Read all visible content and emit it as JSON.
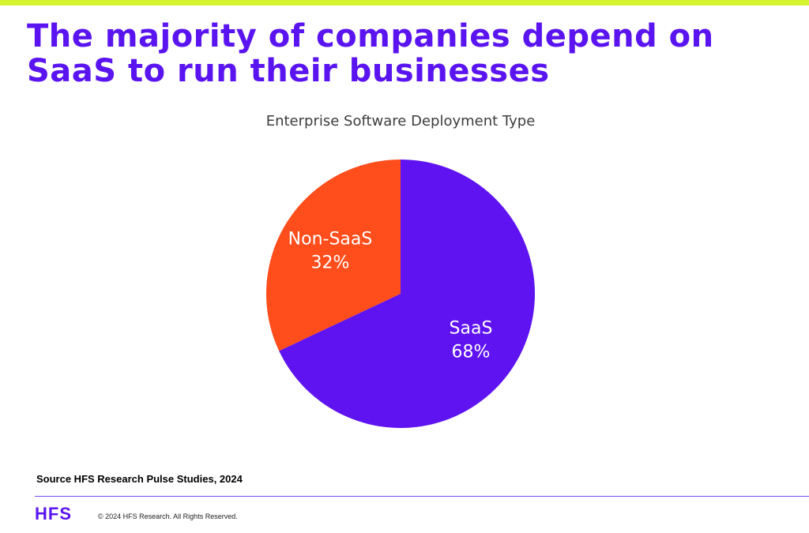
{
  "page": {
    "headline": "The majority of companies depend on SaaS to run their businesses",
    "source_note": "Source HFS Research Pulse Studies, 2024",
    "logo_text": "HFS",
    "copyright": "© 2024 HFS Research. All Rights Reserved."
  },
  "colors": {
    "accent_bar": "#d6f530",
    "headline": "#5a14f0",
    "divider": "#7a4cf2",
    "saas": "#5e13f0",
    "non_saas": "#ff4d1c",
    "slice_label": "#ffffff"
  },
  "chart_data": {
    "type": "pie",
    "title": "Enterprise Software Deployment Type",
    "slices": [
      {
        "name": "SaaS",
        "value": 68,
        "label": "68%"
      },
      {
        "name": "Non-SaaS",
        "value": 32,
        "label": "32%"
      }
    ]
  }
}
